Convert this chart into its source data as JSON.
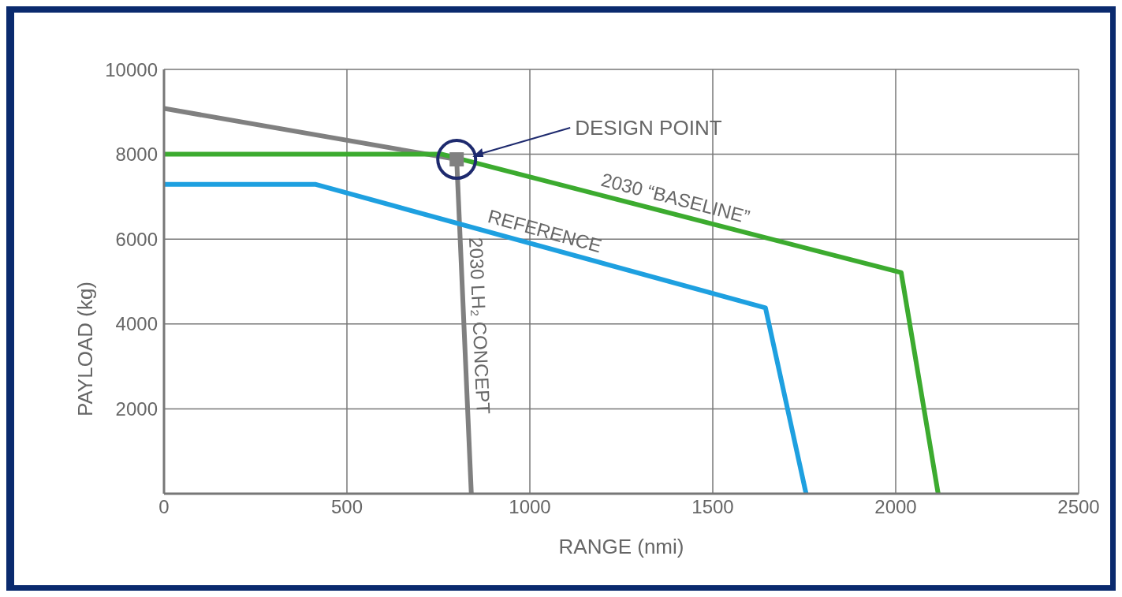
{
  "chart_data": {
    "type": "line",
    "xlabel": "RANGE (nmi)",
    "ylabel": "PAYLOAD (kg)",
    "xlim": [
      0,
      2500
    ],
    "xticks": [
      0,
      500,
      1000,
      1500,
      2000,
      2500
    ],
    "ylim": [
      0,
      10000
    ],
    "yticks": [
      {
        "value": 0,
        "label": null
      },
      2000,
      4000,
      6000,
      8000,
      10000
    ],
    "grid": true,
    "legend": false,
    "marker": "none",
    "line_style": "solid",
    "series": [
      {
        "name": "2030 LH₂ CONCEPT",
        "color": "#808080",
        "x": [
          0,
          800,
          840
        ],
        "values": [
          9080,
          7880,
          0
        ]
      },
      {
        "name": "2030 “BASELINE”",
        "color": "#3cab2f",
        "x": [
          0,
          760,
          2015,
          2116
        ],
        "values": [
          8000,
          8000,
          5210,
          0
        ]
      },
      {
        "name": "REFERENCE",
        "color": "#1ea0e0",
        "x": [
          0,
          415,
          1644,
          1755
        ],
        "values": [
          7290,
          7290,
          4380,
          0
        ]
      },
      {
        "type": "scatter",
        "color": "#808080",
        "marker": "square",
        "x": [
          800
        ],
        "values": [
          7880
        ]
      }
    ],
    "annotations": [
      "DESIGN POINT"
    ]
  }
}
